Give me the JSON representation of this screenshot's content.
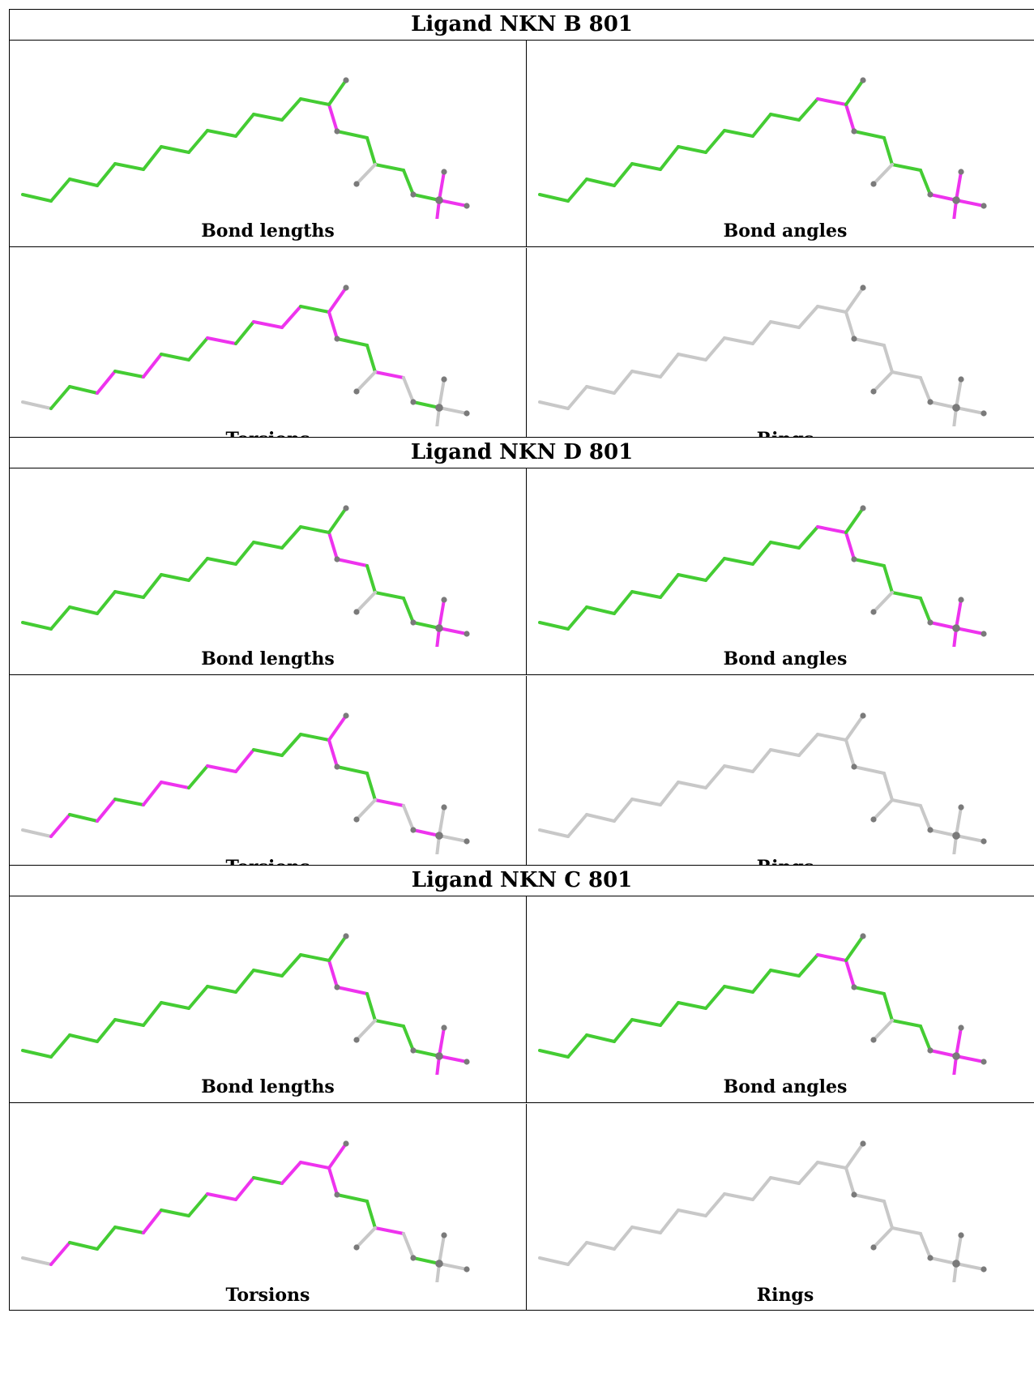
{
  "colors": {
    "outlier": "#ee33ee",
    "ok": "#44cc33",
    "neutral": "#c8c8c8",
    "atom": "#7a7a7a"
  },
  "ligands": [
    {
      "title": "Ligand NKN B 801",
      "panels": [
        {
          "label": "Bond lengths",
          "colors": [
            "g",
            "g",
            "g",
            "g",
            "g",
            "g",
            "g",
            "g",
            "g",
            "g",
            "g",
            "g",
            "g",
            "m",
            "g",
            "g",
            "g",
            "g",
            "g",
            "n",
            "g",
            "m",
            "m",
            "m"
          ]
        },
        {
          "label": "Bond angles",
          "colors": [
            "g",
            "g",
            "g",
            "g",
            "g",
            "g",
            "g",
            "g",
            "g",
            "g",
            "g",
            "g",
            "m",
            "m",
            "g",
            "g",
            "g",
            "g",
            "g",
            "n",
            "m",
            "m",
            "m",
            "m"
          ]
        },
        {
          "label": "Torsions",
          "colors": [
            "n",
            "g",
            "g",
            "m",
            "g",
            "m",
            "g",
            "g",
            "m",
            "g",
            "m",
            "m",
            "g",
            "m",
            "g",
            "g",
            "m",
            "n",
            "m",
            "n",
            "g",
            "n",
            "n",
            "n"
          ]
        },
        {
          "label": "Rings",
          "colors": [
            "n",
            "n",
            "n",
            "n",
            "n",
            "n",
            "n",
            "n",
            "n",
            "n",
            "n",
            "n",
            "n",
            "n",
            "n",
            "n",
            "n",
            "n",
            "n",
            "n",
            "n",
            "n",
            "n",
            "n"
          ]
        }
      ]
    },
    {
      "title": "Ligand NKN D 801",
      "panels": [
        {
          "label": "Bond lengths",
          "colors": [
            "g",
            "g",
            "g",
            "g",
            "g",
            "g",
            "g",
            "g",
            "g",
            "g",
            "g",
            "g",
            "g",
            "m",
            "m",
            "g",
            "g",
            "g",
            "g",
            "n",
            "g",
            "m",
            "m",
            "m"
          ]
        },
        {
          "label": "Bond angles",
          "colors": [
            "g",
            "g",
            "g",
            "g",
            "g",
            "g",
            "g",
            "g",
            "g",
            "g",
            "g",
            "g",
            "m",
            "m",
            "g",
            "g",
            "g",
            "g",
            "g",
            "n",
            "m",
            "m",
            "m",
            "m"
          ]
        },
        {
          "label": "Torsions",
          "colors": [
            "n",
            "m",
            "g",
            "m",
            "g",
            "m",
            "m",
            "g",
            "m",
            "m",
            "g",
            "g",
            "g",
            "m",
            "g",
            "g",
            "m",
            "n",
            "m",
            "n",
            "m",
            "n",
            "n",
            "n"
          ]
        },
        {
          "label": "Rings",
          "colors": [
            "n",
            "n",
            "n",
            "n",
            "n",
            "n",
            "n",
            "n",
            "n",
            "n",
            "n",
            "n",
            "n",
            "n",
            "n",
            "n",
            "n",
            "n",
            "n",
            "n",
            "n",
            "n",
            "n",
            "n"
          ]
        }
      ]
    },
    {
      "title": "Ligand NKN C 801",
      "panels": [
        {
          "label": "Bond lengths",
          "colors": [
            "g",
            "g",
            "g",
            "g",
            "g",
            "g",
            "g",
            "g",
            "g",
            "g",
            "g",
            "g",
            "g",
            "m",
            "m",
            "g",
            "g",
            "g",
            "g",
            "n",
            "g",
            "m",
            "m",
            "m"
          ]
        },
        {
          "label": "Bond angles",
          "colors": [
            "g",
            "g",
            "g",
            "g",
            "g",
            "g",
            "g",
            "g",
            "g",
            "g",
            "g",
            "g",
            "m",
            "m",
            "g",
            "g",
            "g",
            "g",
            "g",
            "n",
            "m",
            "m",
            "m",
            "m"
          ]
        },
        {
          "label": "Torsions",
          "colors": [
            "n",
            "m",
            "g",
            "g",
            "g",
            "m",
            "g",
            "g",
            "m",
            "m",
            "g",
            "m",
            "m",
            "m",
            "g",
            "g",
            "m",
            "n",
            "m",
            "n",
            "g",
            "n",
            "n",
            "n"
          ]
        },
        {
          "label": "Rings",
          "colors": [
            "n",
            "n",
            "n",
            "n",
            "n",
            "n",
            "n",
            "n",
            "n",
            "n",
            "n",
            "n",
            "n",
            "n",
            "n",
            "n",
            "n",
            "n",
            "n",
            "n",
            "n",
            "n",
            "n",
            "n"
          ]
        }
      ]
    }
  ]
}
